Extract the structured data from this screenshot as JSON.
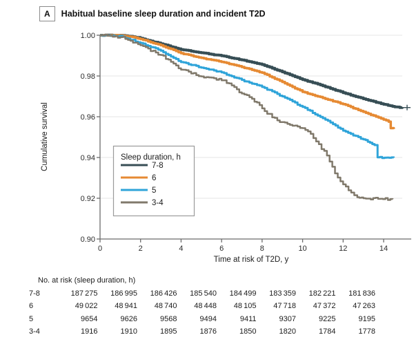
{
  "panel": {
    "label": "A",
    "title": "Habitual baseline sleep duration and incident T2D"
  },
  "chart_data": {
    "type": "line",
    "subtype": "kaplan-meier-cumulative-survival",
    "title": "Habitual baseline sleep duration and incident T2D",
    "xlabel": "Time at risk of T2D, y",
    "ylabel": "Cumulative survival",
    "xlim": [
      0,
      15
    ],
    "ylim": [
      0.9,
      1.0
    ],
    "xticks": [
      "0",
      "2",
      "4",
      "6",
      "8",
      "10",
      "12",
      "14"
    ],
    "yticks": [
      "1.00",
      "0.98",
      "0.96",
      "0.94",
      "0.92",
      "0.90"
    ],
    "grid": "horizontal",
    "gridline_values": [
      1.0,
      0.98,
      0.96,
      0.94,
      0.92
    ],
    "legend": {
      "title": "Sleep duration, h",
      "position": "lower-left",
      "entries": [
        "7-8",
        "6",
        "5",
        "3-4"
      ]
    },
    "series": [
      {
        "name": "7-8",
        "color": "#374E55",
        "stroke_width": 4,
        "jitter": 0.00012,
        "censor_tick": true,
        "points": [
          [
            0,
            1.0
          ],
          [
            1,
            1.0
          ],
          [
            1.5,
            0.9995
          ],
          [
            2,
            0.9985
          ],
          [
            3,
            0.9958
          ],
          [
            4,
            0.993
          ],
          [
            5,
            0.9914
          ],
          [
            6,
            0.9899
          ],
          [
            7,
            0.9879
          ],
          [
            8,
            0.9856
          ],
          [
            9,
            0.982
          ],
          [
            10,
            0.9782
          ],
          [
            11,
            0.9752
          ],
          [
            12,
            0.9718
          ],
          [
            13,
            0.9688
          ],
          [
            14,
            0.9661
          ],
          [
            14.55,
            0.9648
          ],
          [
            14.92,
            0.9645
          ]
        ]
      },
      {
        "name": "6",
        "color": "#E68A33",
        "stroke_width": 3.5,
        "jitter": 0.00015,
        "censor_tick": false,
        "points": [
          [
            0,
            1.0
          ],
          [
            1,
            1.0
          ],
          [
            1.5,
            0.9993
          ],
          [
            2,
            0.9981
          ],
          [
            3,
            0.9951
          ],
          [
            4,
            0.9912
          ],
          [
            5,
            0.9889
          ],
          [
            6,
            0.9869
          ],
          [
            7,
            0.9844
          ],
          [
            8,
            0.9816
          ],
          [
            9,
            0.9771
          ],
          [
            10,
            0.9722
          ],
          [
            11,
            0.9692
          ],
          [
            12,
            0.9662
          ],
          [
            13,
            0.9624
          ],
          [
            14,
            0.9586
          ],
          [
            14.25,
            0.9576
          ],
          [
            14.35,
            0.9544
          ],
          [
            14.5,
            0.954
          ]
        ]
      },
      {
        "name": "5",
        "color": "#2FA4D9",
        "stroke_width": 3,
        "jitter": 0.00028,
        "censor_tick": false,
        "points": [
          [
            0,
            1.0
          ],
          [
            1,
            0.9997
          ],
          [
            2,
            0.9962
          ],
          [
            3,
            0.9924
          ],
          [
            4,
            0.9868
          ],
          [
            5,
            0.9841
          ],
          [
            6,
            0.9818
          ],
          [
            7,
            0.9781
          ],
          [
            8,
            0.9746
          ],
          [
            9,
            0.97
          ],
          [
            10,
            0.9648
          ],
          [
            11,
            0.9593
          ],
          [
            12,
            0.9532
          ],
          [
            13,
            0.9489
          ],
          [
            13.55,
            0.9461
          ],
          [
            13.7,
            0.9401
          ],
          [
            14.5,
            0.9399
          ]
        ]
      },
      {
        "name": "3-4",
        "color": "#80796B",
        "stroke_width": 2.5,
        "jitter": 0.0006,
        "censor_tick": false,
        "points": [
          [
            0,
            1.0
          ],
          [
            1,
            0.9991
          ],
          [
            2,
            0.9951
          ],
          [
            3,
            0.9903
          ],
          [
            4,
            0.9831
          ],
          [
            5,
            0.9798
          ],
          [
            6,
            0.9779
          ],
          [
            6.5,
            0.9754
          ],
          [
            7,
            0.9714
          ],
          [
            7.5,
            0.9688
          ],
          [
            8,
            0.9641
          ],
          [
            8.5,
            0.9597
          ],
          [
            9,
            0.9574
          ],
          [
            9.5,
            0.9556
          ],
          [
            10,
            0.9544
          ],
          [
            10.4,
            0.9516
          ],
          [
            10.8,
            0.9465
          ],
          [
            11.2,
            0.941
          ],
          [
            11.6,
            0.9322
          ],
          [
            12,
            0.9268
          ],
          [
            12.4,
            0.9228
          ],
          [
            12.7,
            0.9205
          ],
          [
            13,
            0.92
          ],
          [
            14.45,
            0.9196
          ]
        ]
      }
    ]
  },
  "risk_table": {
    "header": "No. at risk (sleep duration, h)",
    "time_points": [
      "0",
      "2",
      "4",
      "6",
      "8",
      "10",
      "12",
      "14"
    ],
    "rows": [
      {
        "label": "7-8",
        "values": [
          "187 275",
          "186 995",
          "186 426",
          "185 540",
          "184 499",
          "183 359",
          "182 221",
          "181 836"
        ]
      },
      {
        "label": "6",
        "values": [
          "49 022",
          "48 941",
          "48 740",
          "48 448",
          "48 105",
          "47 718",
          "47 372",
          "47 263"
        ]
      },
      {
        "label": "5",
        "values": [
          "9654",
          "9626",
          "9568",
          "9494",
          "9411",
          "9307",
          "9225",
          "9195"
        ]
      },
      {
        "label": "3-4",
        "values": [
          "1916",
          "1910",
          "1895",
          "1876",
          "1850",
          "1820",
          "1784",
          "1778"
        ]
      }
    ]
  },
  "style": {
    "axis_color": "#6b6b6b",
    "grid_color": "#e4e4e4",
    "tick_label_color": "#2b2b2b",
    "text_color": "#1b1b1b",
    "legend_border_color": "#9a9a9a"
  }
}
